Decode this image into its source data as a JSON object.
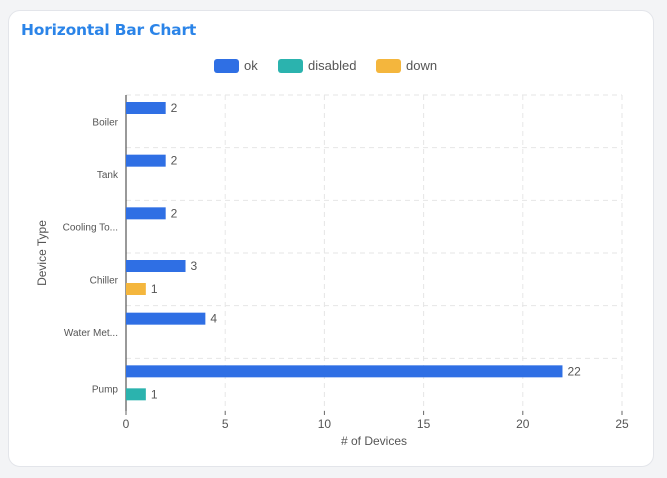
{
  "title": "Horizontal Bar Chart",
  "chart_data": {
    "type": "bar",
    "orientation": "horizontal",
    "categories": [
      "Boiler",
      "Tank",
      "Cooling To...",
      "Chiller",
      "Water Met...",
      "Pump"
    ],
    "series": [
      {
        "name": "ok",
        "color": "#2f6fe4",
        "values": [
          2,
          2,
          2,
          3,
          4,
          22
        ]
      },
      {
        "name": "disabled",
        "color": "#2bb3ae",
        "values": [
          0,
          0,
          0,
          0,
          0,
          1
        ]
      },
      {
        "name": "down",
        "color": "#f4b63d",
        "values": [
          0,
          0,
          0,
          1,
          0,
          0
        ]
      }
    ],
    "xlabel": "# of Devices",
    "ylabel": "Device Type",
    "xlim": [
      0,
      25
    ],
    "xticks": [
      0,
      5,
      10,
      15,
      20,
      25
    ],
    "grid": true,
    "legend": "top-center"
  }
}
